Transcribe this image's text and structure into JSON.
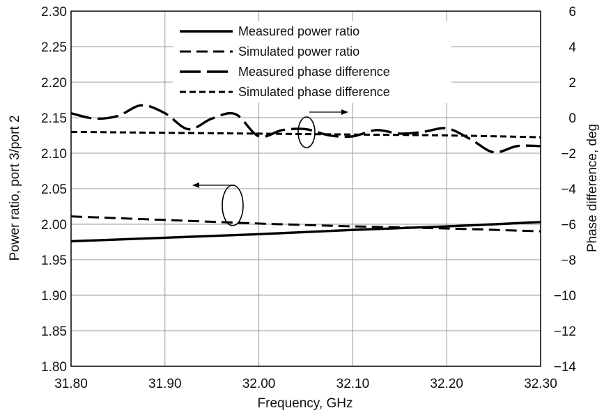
{
  "chart_data": {
    "type": "line",
    "xlabel": "Frequency, GHz",
    "ylabel_left": "Power ratio, port 3/port 2",
    "ylabel_right": "Phase difference, deg",
    "xlim": [
      31.8,
      32.3
    ],
    "ylim_left": [
      1.8,
      2.3
    ],
    "ylim_right": [
      -14,
      6
    ],
    "grid": true,
    "legend_position": "top-center",
    "x_ticks": [
      "31.80",
      "31.90",
      "32.00",
      "32.10",
      "32.20",
      "32.30"
    ],
    "y_left_ticks": [
      "1.80",
      "1.85",
      "1.90",
      "1.95",
      "2.00",
      "2.05",
      "2.10",
      "2.15",
      "2.20",
      "2.25",
      "2.30"
    ],
    "y_right_ticks": [
      "−14",
      "−12",
      "−10",
      "−8",
      "−6",
      "−4",
      "−2",
      "0",
      "2",
      "4",
      "6"
    ],
    "series": [
      {
        "name": "Measured power ratio",
        "axis": "left",
        "style": "solid",
        "x": [
          31.8,
          31.9,
          32.0,
          32.1,
          32.2,
          32.3
        ],
        "y": [
          1.976,
          1.981,
          1.986,
          1.992,
          1.997,
          2.003
        ]
      },
      {
        "name": "Simulated power ratio",
        "axis": "left",
        "style": "dash",
        "x": [
          31.8,
          31.9,
          32.0,
          32.1,
          32.2,
          32.3
        ],
        "y": [
          2.011,
          2.006,
          2.001,
          1.997,
          1.994,
          1.99
        ]
      },
      {
        "name": "Measured phase difference",
        "axis": "right",
        "style": "longdash",
        "x": [
          31.8,
          31.825,
          31.85,
          31.875,
          31.9,
          31.925,
          31.95,
          31.975,
          32.0,
          32.025,
          32.05,
          32.075,
          32.1,
          32.125,
          32.15,
          32.175,
          32.2,
          32.225,
          32.25,
          32.275,
          32.3
        ],
        "y": [
          0.25,
          -0.05,
          0.1,
          0.7,
          0.25,
          -0.65,
          -0.05,
          0.2,
          -1.05,
          -0.7,
          -0.65,
          -1.0,
          -1.05,
          -0.7,
          -0.9,
          -0.8,
          -0.6,
          -1.2,
          -1.95,
          -1.6,
          -1.6
        ]
      },
      {
        "name": "Simulated phase difference",
        "axis": "right",
        "style": "shortdash",
        "x": [
          31.8,
          31.9,
          32.0,
          32.1,
          32.2,
          32.3
        ],
        "y": [
          -0.8,
          -0.85,
          -0.9,
          -0.95,
          -1.0,
          -1.1
        ]
      }
    ]
  }
}
